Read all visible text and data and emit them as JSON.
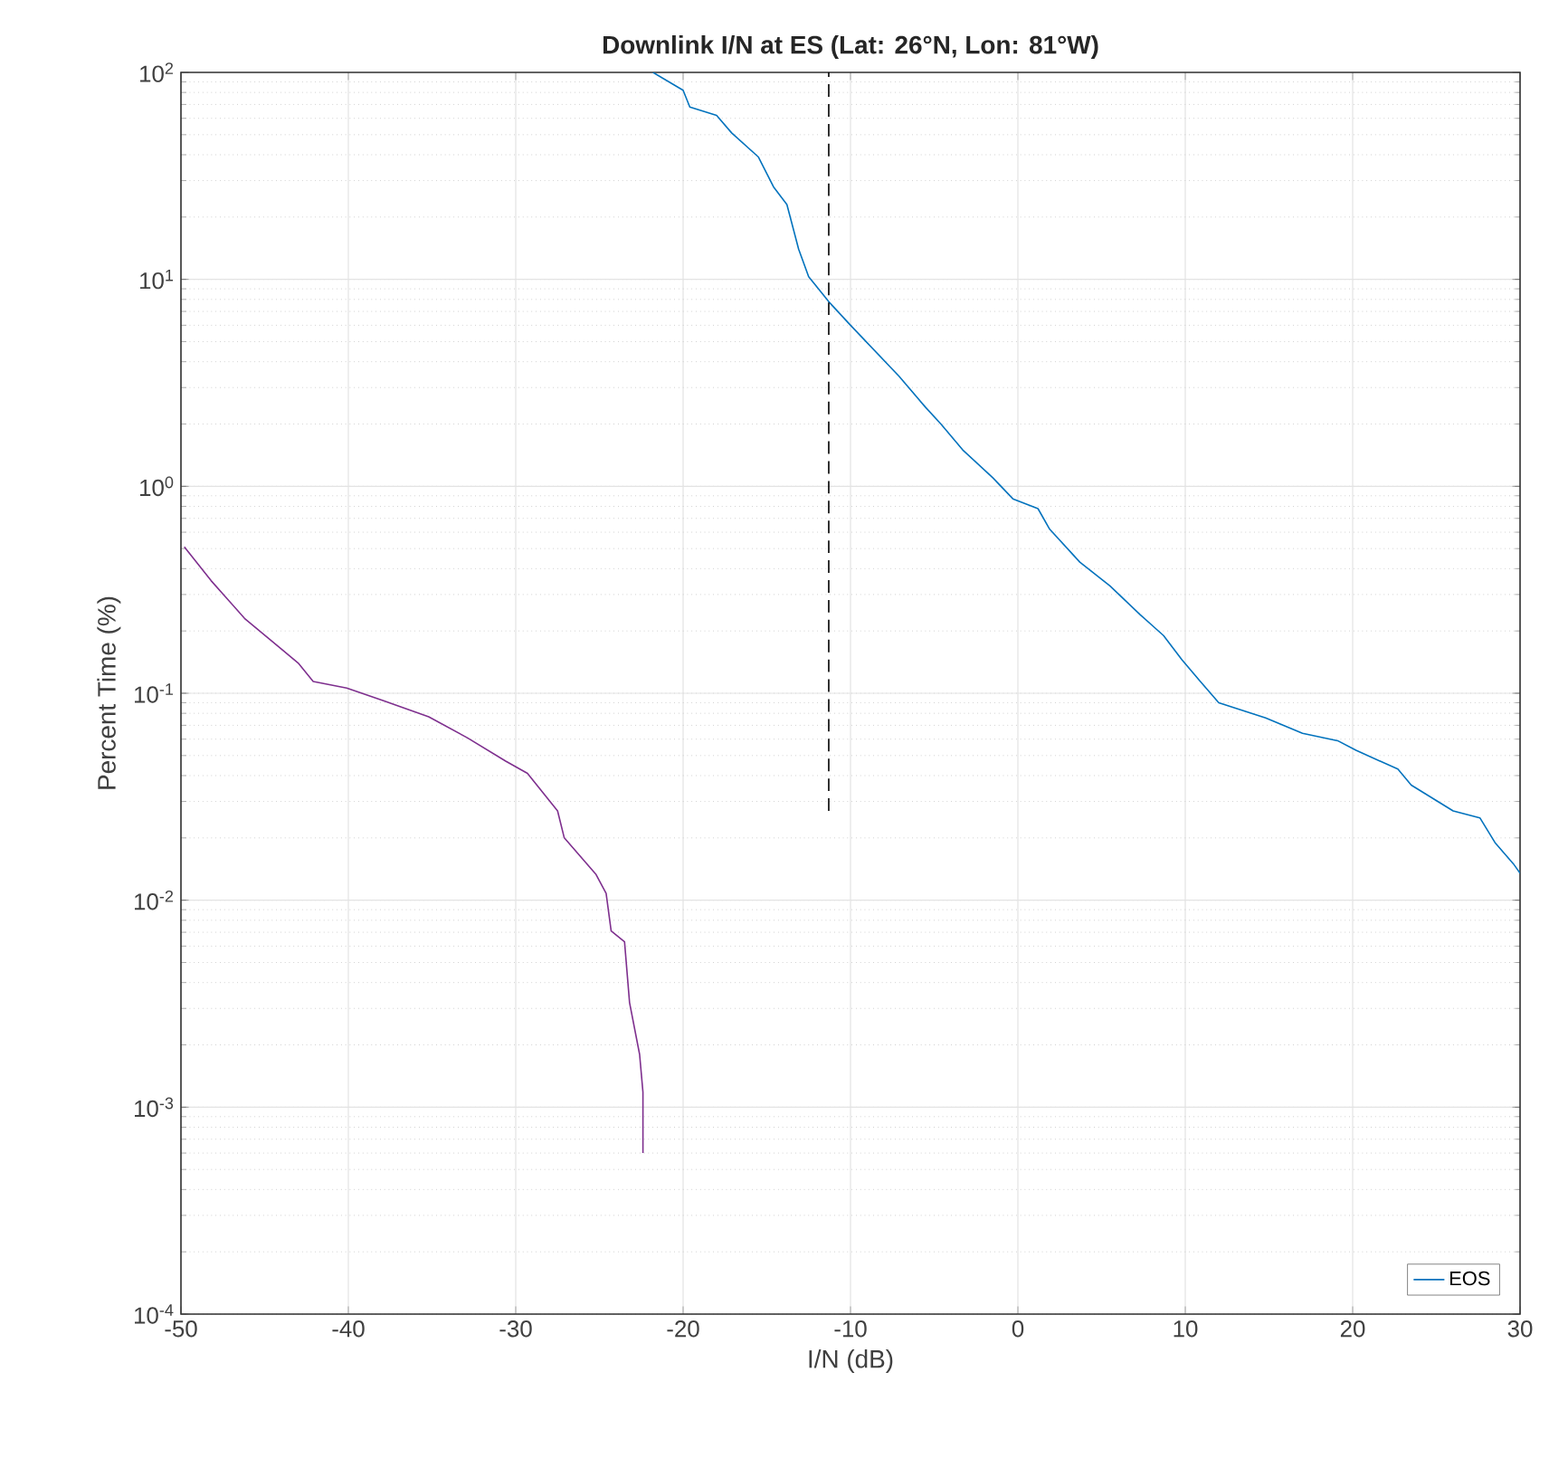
{
  "chart_data": {
    "type": "line",
    "title": "Downlink I/N at ES (Lat: 26°N, Lon: 81°W)",
    "xlabel": "I/N (dB)",
    "ylabel": "Percent Time (%)",
    "xlim": [
      -50,
      30
    ],
    "xticks": [
      -50,
      -40,
      -30,
      -20,
      -10,
      0,
      10,
      20,
      30
    ],
    "ylim": [
      0.0001,
      100
    ],
    "log": "y",
    "yticks": [
      {
        "value": 0.0001,
        "label": "10$^{-4}$"
      },
      {
        "value": 0.001,
        "label": "10$^{-3}$"
      },
      {
        "value": 0.01,
        "label": "10$^{-2}$"
      },
      {
        "value": 0.1,
        "label": "10$^{-1}$"
      },
      {
        "value": 1,
        "label": "10$^{0}$"
      },
      {
        "value": 10,
        "label": "10$^{1}$"
      },
      {
        "value": 100,
        "label": "10$^{2}$"
      }
    ],
    "grid": true,
    "legend": "bottom right",
    "series": [
      {
        "name": "EOS",
        "color": "#0072bd",
        "x": [
          -21.8,
          -20.0,
          -19.6,
          -18.0,
          -17.1,
          -15.5,
          -14.6,
          -13.8,
          -13.1,
          -12.5,
          -11.3,
          -10.0,
          -7.1,
          -5.5,
          -4.6,
          -3.3,
          -1.5,
          -0.3,
          1.2,
          1.9,
          3.7,
          5.5,
          7.3,
          8.7,
          9.8,
          10.9,
          12.0,
          14.8,
          17.0,
          19.1,
          20.2,
          22.7,
          23.5,
          26.0,
          27.6,
          28.5,
          29.6,
          30.0
        ],
        "values": [
          100,
          82,
          68,
          62,
          51,
          39,
          28,
          23,
          14,
          10.3,
          7.8,
          6.0,
          3.4,
          2.4,
          2.0,
          1.5,
          1.1,
          0.87,
          0.78,
          0.62,
          0.43,
          0.33,
          0.24,
          0.19,
          0.145,
          0.114,
          0.09,
          0.076,
          0.064,
          0.059,
          0.053,
          0.043,
          0.036,
          0.027,
          0.025,
          0.019,
          0.015,
          0.0135
        ]
      },
      {
        "color": "#7e2f8e",
        "x": [
          -49.8,
          -48.2,
          -46.2,
          -44.1,
          -43.0,
          -42.1,
          -40.1,
          -37.9,
          -35.2,
          -32.9,
          -30.6,
          -29.3,
          -27.5,
          -27.1,
          -25.2,
          -24.6,
          -24.3,
          -23.5,
          -23.2,
          -22.6,
          -22.4,
          -22.4
        ],
        "values": [
          0.51,
          0.35,
          0.23,
          0.166,
          0.14,
          0.114,
          0.106,
          0.092,
          0.077,
          0.061,
          0.047,
          0.041,
          0.027,
          0.02,
          0.0133,
          0.0108,
          0.0071,
          0.0063,
          0.0032,
          0.0018,
          0.00118,
          0.0006
        ]
      },
      {
        "color": "#000000",
        "line_style": "dashed",
        "x": [
          -11.3,
          -11.3
        ],
        "values": [
          0.027,
          100
        ]
      }
    ]
  }
}
